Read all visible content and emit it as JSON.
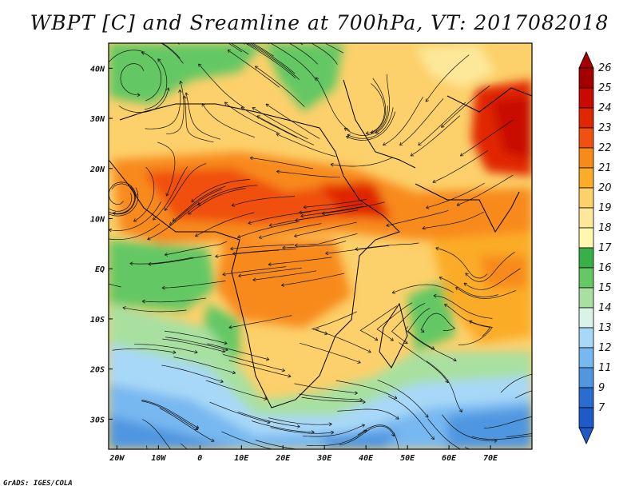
{
  "title": "WBPT [C] and Sreamline at 700hPa, VT: 2017082018",
  "credit": "GrADS: IGES/COLA",
  "map": {
    "lon_range": [
      -22,
      80
    ],
    "lat_range": [
      -36,
      45
    ],
    "lon_ticks": [
      {
        "value": -20,
        "label": "20W"
      },
      {
        "value": -10,
        "label": "10W"
      },
      {
        "value": 0,
        "label": "0"
      },
      {
        "value": 10,
        "label": "10E"
      },
      {
        "value": 20,
        "label": "20E"
      },
      {
        "value": 30,
        "label": "30E"
      },
      {
        "value": 40,
        "label": "40E"
      },
      {
        "value": 50,
        "label": "50E"
      },
      {
        "value": 60,
        "label": "60E"
      },
      {
        "value": 70,
        "label": "70E"
      }
    ],
    "lat_ticks": [
      {
        "value": 40,
        "label": "40N"
      },
      {
        "value": 30,
        "label": "30N"
      },
      {
        "value": 20,
        "label": "20N"
      },
      {
        "value": 10,
        "label": "10N"
      },
      {
        "value": 0,
        "label": "EQ"
      },
      {
        "value": -10,
        "label": "10S"
      },
      {
        "value": -20,
        "label": "20S"
      },
      {
        "value": -30,
        "label": "30S"
      }
    ]
  },
  "colorbar": {
    "levels": [
      {
        "label": "26",
        "color": "#a50000"
      },
      {
        "label": "25",
        "color": "#c80a00"
      },
      {
        "label": "24",
        "color": "#e02800"
      },
      {
        "label": "23",
        "color": "#f05010"
      },
      {
        "label": "22",
        "color": "#f88a1a"
      },
      {
        "label": "21",
        "color": "#fbac28"
      },
      {
        "label": "20",
        "color": "#fcd06a"
      },
      {
        "label": "19",
        "color": "#fde89a"
      },
      {
        "label": "18",
        "color": "#fff7b0"
      },
      {
        "label": "17",
        "color": "#38b048"
      },
      {
        "label": "16",
        "color": "#64c864"
      },
      {
        "label": "15",
        "color": "#a8e0a0"
      },
      {
        "label": "14",
        "color": "#d8f4e8"
      },
      {
        "label": "13",
        "color": "#a8d8f8"
      },
      {
        "label": "12",
        "color": "#78b8f0"
      },
      {
        "label": "11",
        "color": "#5096e0"
      },
      {
        "label": "9",
        "color": "#2a6cd0"
      },
      {
        "label": "7",
        "color": "#1e5ac8"
      }
    ]
  }
}
